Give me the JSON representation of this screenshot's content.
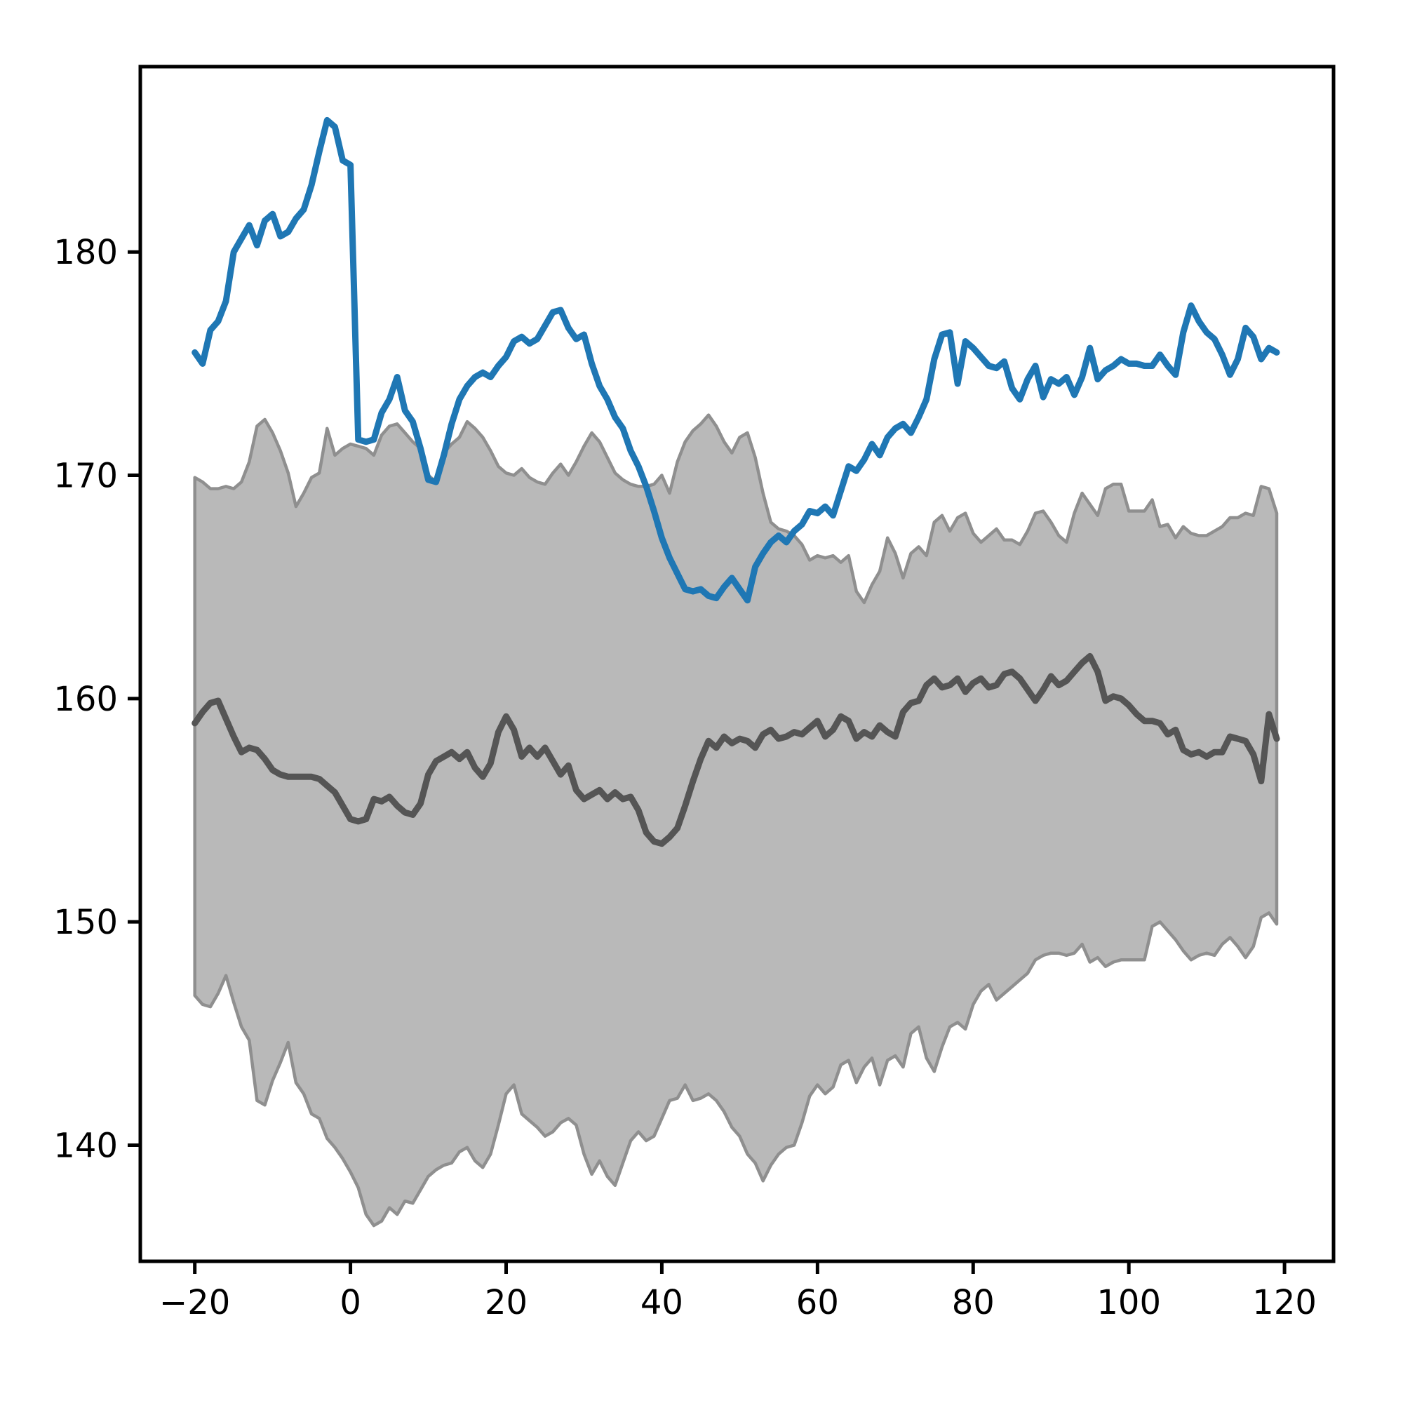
{
  "figure": {
    "title": "",
    "background_color": "#ffffff"
  },
  "colors": {
    "price_line": "#1f77b4",
    "band_fill": "#b9b9b9",
    "band_edge": "#8f8f8f",
    "mean_line": "#555555",
    "axis": "#000000"
  },
  "chart_data": {
    "type": "line",
    "title": "",
    "xlabel": "",
    "ylabel": "",
    "grid": false,
    "legend": "none",
    "xlim": [
      -27.0,
      126.3
    ],
    "ylim": [
      134.8,
      188.3
    ],
    "xticks": [
      -20,
      0,
      20,
      40,
      60,
      80,
      100,
      120
    ],
    "xtick_labels": [
      "−20",
      "0",
      "20",
      "40",
      "60",
      "80",
      "100",
      "120"
    ],
    "yticks": [
      140,
      150,
      160,
      170,
      180
    ],
    "ytick_labels": [
      "140",
      "150",
      "160",
      "170",
      "180"
    ],
    "x_start": -20,
    "x_step": 1,
    "x_end": 119,
    "series": [
      {
        "name": "price-history",
        "style": "line",
        "color": "#1f77b4",
        "values": [
          175.5,
          175.0,
          176.5,
          176.9,
          177.8,
          180.0,
          180.6,
          181.2,
          180.3,
          181.4,
          181.7,
          180.7,
          180.9,
          181.5,
          181.9,
          183.0,
          184.5,
          185.9,
          185.6,
          184.1,
          183.9,
          171.6,
          171.5,
          171.6,
          172.8,
          173.4,
          174.4,
          172.9,
          172.4,
          171.2,
          169.8,
          169.7,
          170.9,
          172.3,
          173.4,
          174.0,
          174.4,
          174.6,
          174.4,
          174.9,
          175.3,
          176.0,
          176.2,
          175.9,
          176.1,
          176.7,
          177.3,
          177.4,
          176.6,
          176.1,
          176.3,
          175.0,
          174.0,
          173.4,
          172.6,
          172.1,
          171.1,
          170.4,
          169.5,
          168.4,
          167.2,
          166.3,
          165.6,
          164.9,
          164.8,
          164.9,
          164.6,
          164.5,
          165.0,
          165.4,
          164.9,
          164.4,
          165.9,
          166.5,
          167.0,
          167.3,
          167.0,
          167.5,
          167.8,
          168.4,
          168.3,
          168.6,
          168.2,
          169.3,
          170.4,
          170.2,
          170.7,
          171.4,
          170.9,
          171.7,
          172.1,
          172.3,
          171.9,
          172.6,
          173.4,
          175.2,
          176.3,
          176.4,
          174.1,
          176.0,
          175.7,
          175.3,
          174.9,
          174.8,
          175.1,
          173.9,
          173.4,
          174.3,
          174.9,
          173.5,
          174.3,
          174.1,
          174.4,
          173.6,
          174.4,
          175.7,
          174.3,
          174.7,
          174.9,
          175.2,
          175.0,
          175.0,
          174.9,
          174.9,
          175.4,
          174.9,
          174.5,
          176.4,
          177.6,
          176.9,
          176.4,
          176.1,
          175.4,
          174.5,
          175.2,
          176.6,
          176.2,
          175.2,
          175.7,
          175.5
        ]
      },
      {
        "name": "simulation-mean",
        "style": "line",
        "color": "#555555",
        "values": [
          158.9,
          159.4,
          159.8,
          159.9,
          159.1,
          158.3,
          157.6,
          157.8,
          157.7,
          157.3,
          156.8,
          156.6,
          156.5,
          156.5,
          156.5,
          156.5,
          156.4,
          156.1,
          155.8,
          155.2,
          154.6,
          154.5,
          154.6,
          155.5,
          155.4,
          155.6,
          155.2,
          154.9,
          154.8,
          155.3,
          156.6,
          157.2,
          157.4,
          157.6,
          157.3,
          157.6,
          156.9,
          156.5,
          157.1,
          158.5,
          159.2,
          158.6,
          157.4,
          157.8,
          157.4,
          157.8,
          157.2,
          156.6,
          157.0,
          155.9,
          155.5,
          155.7,
          155.9,
          155.5,
          155.8,
          155.5,
          155.6,
          155.0,
          154.0,
          153.6,
          153.5,
          153.8,
          154.2,
          155.2,
          156.3,
          157.3,
          158.1,
          157.8,
          158.3,
          158.0,
          158.2,
          158.1,
          157.8,
          158.4,
          158.6,
          158.2,
          158.3,
          158.5,
          158.4,
          158.7,
          159.0,
          158.3,
          158.6,
          159.2,
          159.0,
          158.2,
          158.5,
          158.3,
          158.8,
          158.5,
          158.3,
          159.4,
          159.8,
          159.9,
          160.6,
          160.9,
          160.5,
          160.6,
          160.9,
          160.3,
          160.7,
          160.9,
          160.5,
          160.6,
          161.1,
          161.2,
          160.9,
          160.4,
          159.9,
          160.4,
          161.0,
          160.6,
          160.8,
          161.2,
          161.6,
          161.9,
          161.2,
          159.9,
          160.1,
          160.0,
          159.7,
          159.3,
          159.0,
          159.0,
          158.9,
          158.4,
          158.6,
          157.7,
          157.5,
          157.6,
          157.4,
          157.6,
          157.6,
          158.3,
          158.2,
          158.1,
          157.5,
          156.3,
          159.3,
          158.2
        ]
      },
      {
        "name": "simulation-band-top",
        "style": "band-upper",
        "color": "#b9b9b9",
        "values": [
          169.9,
          169.7,
          169.4,
          169.4,
          169.5,
          169.4,
          169.7,
          170.6,
          172.2,
          172.5,
          171.9,
          171.1,
          170.1,
          168.6,
          169.2,
          169.9,
          170.1,
          172.1,
          170.9,
          171.2,
          171.4,
          171.3,
          171.2,
          170.9,
          171.8,
          172.2,
          172.3,
          171.9,
          171.5,
          171.2,
          170.0,
          169.7,
          171.0,
          171.4,
          171.7,
          172.4,
          172.1,
          171.7,
          171.1,
          170.4,
          170.1,
          170.0,
          170.3,
          169.9,
          169.7,
          169.6,
          170.1,
          170.5,
          170.0,
          170.6,
          171.3,
          171.9,
          171.5,
          170.8,
          170.1,
          169.8,
          169.6,
          169.5,
          169.5,
          169.6,
          170.0,
          169.2,
          170.6,
          171.5,
          172.0,
          172.3,
          172.7,
          172.2,
          171.5,
          171.0,
          171.7,
          171.9,
          170.8,
          169.2,
          167.9,
          167.6,
          167.5,
          167.3,
          166.9,
          166.2,
          166.4,
          166.3,
          166.4,
          166.1,
          166.4,
          164.8,
          164.3,
          165.1,
          165.7,
          167.2,
          166.5,
          165.4,
          166.5,
          166.8,
          166.4,
          167.9,
          168.2,
          167.5,
          168.1,
          168.3,
          167.4,
          167.0,
          167.3,
          167.6,
          167.1,
          167.1,
          166.9,
          167.5,
          168.3,
          168.4,
          167.9,
          167.3,
          167.0,
          168.3,
          169.2,
          168.7,
          168.2,
          169.4,
          169.6,
          169.6,
          168.4,
          168.4,
          168.4,
          168.9,
          167.7,
          167.8,
          167.2,
          167.7,
          167.4,
          167.3,
          167.3,
          167.5,
          167.7,
          168.1,
          168.1,
          168.3,
          168.2,
          169.5,
          169.4,
          168.3
        ]
      },
      {
        "name": "simulation-band-bottom",
        "style": "band-lower",
        "color": "#b9b9b9",
        "values": [
          146.7,
          146.3,
          146.2,
          146.8,
          147.6,
          146.4,
          145.3,
          144.7,
          142.0,
          141.8,
          142.9,
          143.7,
          144.6,
          142.8,
          142.3,
          141.4,
          141.2,
          140.3,
          139.9,
          139.4,
          138.8,
          138.1,
          136.9,
          136.4,
          136.6,
          137.2,
          136.9,
          137.5,
          137.4,
          138.0,
          138.6,
          138.9,
          139.1,
          139.2,
          139.7,
          139.9,
          139.3,
          139.0,
          139.6,
          140.9,
          142.3,
          142.7,
          141.4,
          141.1,
          140.8,
          140.4,
          140.6,
          141.0,
          141.2,
          140.9,
          139.6,
          138.7,
          139.3,
          138.6,
          138.2,
          139.2,
          140.2,
          140.6,
          140.2,
          140.4,
          141.2,
          142.0,
          142.1,
          142.7,
          142.0,
          142.1,
          142.3,
          142.0,
          141.5,
          140.8,
          140.4,
          139.6,
          139.2,
          138.4,
          139.1,
          139.6,
          139.9,
          140.0,
          141.0,
          142.2,
          142.7,
          142.3,
          142.6,
          143.6,
          143.8,
          142.8,
          143.5,
          143.9,
          142.7,
          143.8,
          144.0,
          143.5,
          145.0,
          145.3,
          143.9,
          143.3,
          144.4,
          145.3,
          145.5,
          145.2,
          146.3,
          146.9,
          147.2,
          146.5,
          146.8,
          147.1,
          147.4,
          147.7,
          148.3,
          148.5,
          148.6,
          148.6,
          148.5,
          148.6,
          149.0,
          148.2,
          148.4,
          148.0,
          148.2,
          148.3,
          148.3,
          148.3,
          148.3,
          149.8,
          150.0,
          149.6,
          149.2,
          148.7,
          148.3,
          148.5,
          148.6,
          148.5,
          149.0,
          149.3,
          148.9,
          148.4,
          148.9,
          150.2,
          150.4,
          149.9
        ]
      }
    ]
  }
}
